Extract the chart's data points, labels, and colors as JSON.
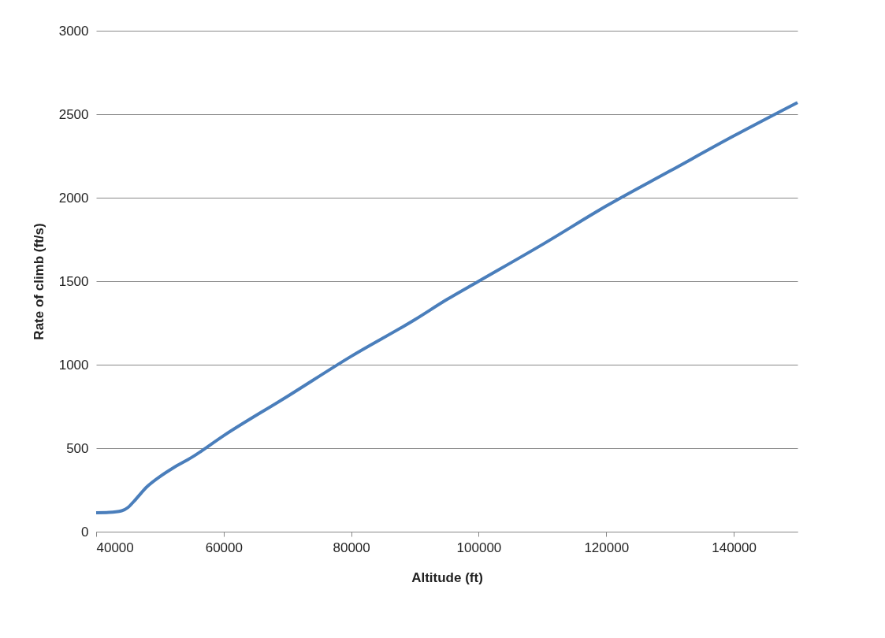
{
  "chart_data": {
    "type": "line",
    "xlabel": "Altitude (ft)",
    "ylabel": "Rate of climb (ft/s)",
    "x": [
      40000,
      42000,
      44000,
      45000,
      46000,
      48000,
      50000,
      52000,
      55000,
      60000,
      70000,
      80000,
      90000,
      95000,
      100000,
      110000,
      120000,
      130000,
      140000,
      150000
    ],
    "series": [
      {
        "color": "#4a7ebb",
        "values": [
          113,
          115,
          125,
          145,
          185,
          270,
          330,
          380,
          445,
          575,
          810,
          1050,
          1270,
          1390,
          1500,
          1720,
          1950,
          2160,
          2370,
          2570
        ]
      }
    ],
    "xlim": [
      40000,
      150000
    ],
    "xticks": [
      40000,
      60000,
      80000,
      100000,
      120000,
      140000
    ],
    "ylim": [
      0,
      3000
    ],
    "yticks": [
      0,
      500,
      1000,
      1500,
      2000,
      2500,
      3000
    ],
    "grid": "y",
    "legend": false,
    "marker": "none",
    "line_style": "solid"
  }
}
